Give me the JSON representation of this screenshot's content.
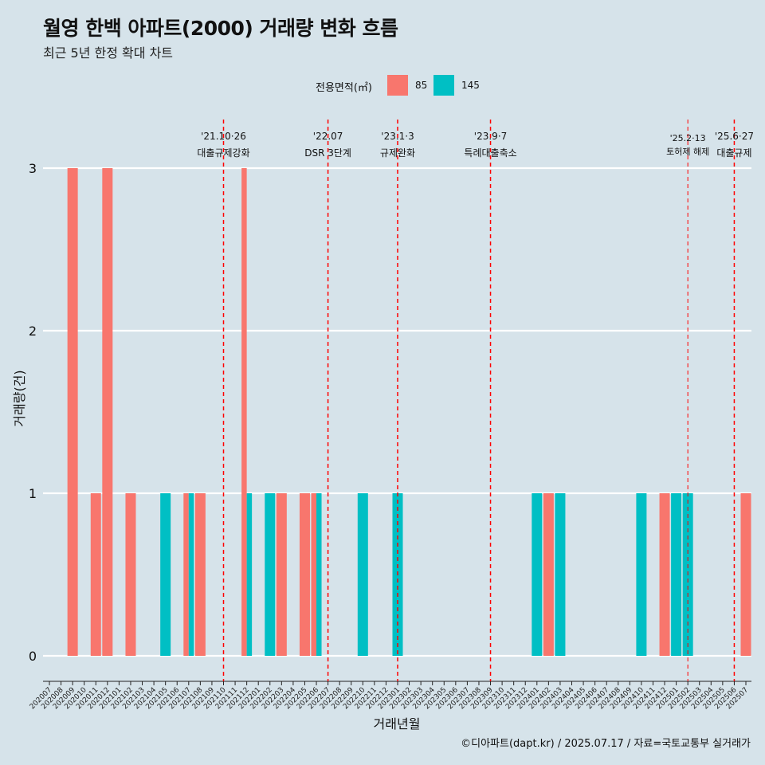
{
  "title": "월영 한백 아파트(2000) 거래량 변화 흐름",
  "subtitle": "최근 5년 한정 확대 차트",
  "caption": "©디아파트(dapt.kr) / 2025.07.17 / 자료=국토교통부 실거래가",
  "legend": {
    "title": "전용면적(㎡)",
    "items": [
      {
        "label": "85",
        "color": "#F8766D"
      },
      {
        "label": "145",
        "color": "#00BFC4"
      }
    ]
  },
  "chart_data": {
    "type": "bar",
    "xlabel": "거래년월",
    "ylabel": "거래량(건)",
    "ylim": [
      0,
      3
    ],
    "yticks": [
      "0",
      "1",
      "2",
      "3"
    ],
    "grid": true,
    "legend_position": "top",
    "categories": [
      "202007",
      "202008",
      "202009",
      "202010",
      "202011",
      "202012",
      "202101",
      "202102",
      "202103",
      "202104",
      "202105",
      "202106",
      "202107",
      "202108",
      "202109",
      "202110",
      "202111",
      "202112",
      "202201",
      "202202",
      "202203",
      "202204",
      "202205",
      "202206",
      "202207",
      "202208",
      "202209",
      "202210",
      "202211",
      "202212",
      "202301",
      "202302",
      "202303",
      "202304",
      "202305",
      "202306",
      "202307",
      "202308",
      "202309",
      "202310",
      "202311",
      "202312",
      "202401",
      "202402",
      "202403",
      "202404",
      "202405",
      "202406",
      "202407",
      "202408",
      "202409",
      "202410",
      "202411",
      "202412",
      "202501",
      "202502",
      "202503",
      "202504",
      "202505",
      "202506",
      "202507"
    ],
    "bars": [
      {
        "month": "202009",
        "series": "85",
        "value": 3
      },
      {
        "month": "202011",
        "series": "85",
        "value": 1
      },
      {
        "month": "202012",
        "series": "85",
        "value": 3
      },
      {
        "month": "202102",
        "series": "85",
        "value": 1
      },
      {
        "month": "202105",
        "series": "145",
        "value": 1
      },
      {
        "month": "202107",
        "series": "85",
        "value": 1
      },
      {
        "month": "202107",
        "series": "145",
        "value": 1
      },
      {
        "month": "202108",
        "series": "85",
        "value": 1
      },
      {
        "month": "202112",
        "series": "85",
        "value": 3
      },
      {
        "month": "202112",
        "series": "145",
        "value": 1
      },
      {
        "month": "202202",
        "series": "145",
        "value": 1
      },
      {
        "month": "202203",
        "series": "85",
        "value": 1
      },
      {
        "month": "202205",
        "series": "85",
        "value": 1
      },
      {
        "month": "202206",
        "series": "85",
        "value": 1
      },
      {
        "month": "202206",
        "series": "145",
        "value": 1
      },
      {
        "month": "202210",
        "series": "145",
        "value": 1
      },
      {
        "month": "202301",
        "series": "145",
        "value": 1
      },
      {
        "month": "202401",
        "series": "145",
        "value": 1
      },
      {
        "month": "202402",
        "series": "85",
        "value": 1
      },
      {
        "month": "202403",
        "series": "145",
        "value": 1
      },
      {
        "month": "202410",
        "series": "145",
        "value": 1
      },
      {
        "month": "202412",
        "series": "85",
        "value": 1
      },
      {
        "month": "202501",
        "series": "145",
        "value": 1
      },
      {
        "month": "202502",
        "series": "145",
        "value": 1
      },
      {
        "month": "202507",
        "series": "85",
        "value": 1
      }
    ],
    "events": [
      {
        "month": "202110",
        "date": "'21.10·26",
        "label": "대출규제강화",
        "size": "normal"
      },
      {
        "month": "202207",
        "date": "'22.07",
        "label": "DSR 3단계",
        "size": "normal"
      },
      {
        "month": "202301",
        "date": "'23.1·3",
        "label": "규제완화",
        "size": "normal"
      },
      {
        "month": "202309",
        "date": "'23.9·7",
        "label": "특례대출축소",
        "size": "normal"
      },
      {
        "month": "202502",
        "date": "'25.2·13",
        "label": "토허제 해제",
        "size": "small"
      },
      {
        "month": "202506",
        "date": "'25.6·27",
        "label": "대출규제",
        "size": "normal"
      }
    ],
    "event_line_color": "#FF0000"
  }
}
